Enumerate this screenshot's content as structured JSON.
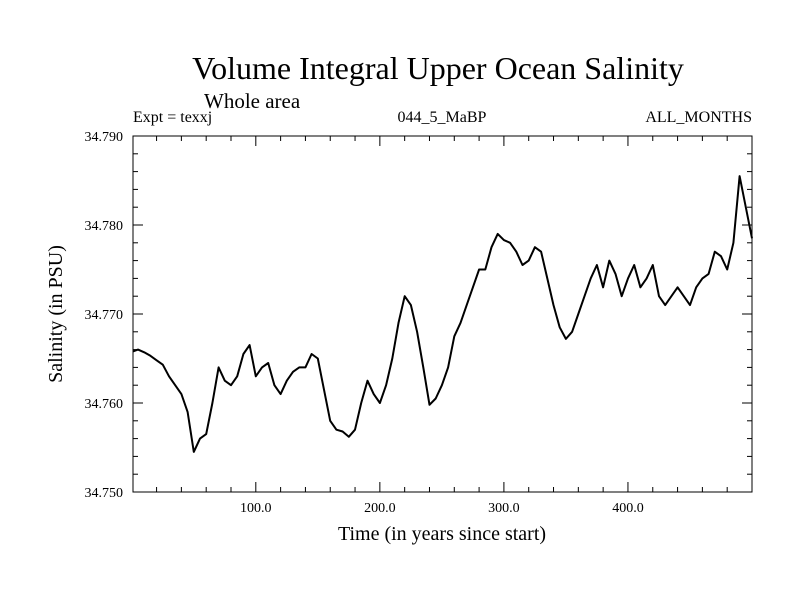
{
  "chart_data": {
    "type": "line",
    "title": "Volume Integral Upper Ocean Salinity",
    "subtitle": "Whole area",
    "experiment_label": "Expt = texxj",
    "run_label": "044_5_MaBP",
    "period_label": "ALL_MONTHS",
    "xlabel": "Time (in years since start)",
    "ylabel": "Salinity (in PSU)",
    "xlim": [
      1,
      500
    ],
    "ylim": [
      34.75,
      34.79
    ],
    "x_ticks": [
      100,
      200,
      300,
      400
    ],
    "x_tick_labels": [
      "100.0",
      "200.0",
      "300.0",
      "400.0"
    ],
    "y_ticks": [
      34.75,
      34.76,
      34.77,
      34.78,
      34.79
    ],
    "y_tick_labels": [
      "34.750",
      "34.760",
      "34.770",
      "34.780",
      "34.790"
    ],
    "grid": false,
    "series": [
      {
        "name": "Salinity",
        "x": [
          1,
          5,
          10,
          15,
          20,
          25,
          30,
          35,
          40,
          45,
          50,
          55,
          60,
          65,
          70,
          75,
          80,
          85,
          90,
          95,
          100,
          105,
          110,
          115,
          120,
          125,
          130,
          135,
          140,
          145,
          150,
          155,
          160,
          165,
          170,
          175,
          180,
          185,
          190,
          195,
          200,
          205,
          210,
          215,
          220,
          225,
          230,
          235,
          240,
          245,
          250,
          255,
          260,
          265,
          270,
          275,
          280,
          285,
          290,
          295,
          300,
          305,
          310,
          315,
          320,
          325,
          330,
          335,
          340,
          345,
          350,
          355,
          360,
          365,
          370,
          375,
          380,
          385,
          390,
          395,
          400,
          405,
          410,
          415,
          420,
          425,
          430,
          435,
          440,
          445,
          450,
          455,
          460,
          465,
          470,
          475,
          480,
          485,
          490,
          495,
          500
        ],
        "values": [
          34.7658,
          34.766,
          34.7657,
          34.7653,
          34.7648,
          34.7643,
          34.763,
          34.762,
          34.761,
          34.759,
          34.7545,
          34.756,
          34.7565,
          34.76,
          34.764,
          34.7625,
          34.762,
          34.763,
          34.7655,
          34.7665,
          34.763,
          34.764,
          34.7645,
          34.762,
          34.761,
          34.7625,
          34.7635,
          34.764,
          34.764,
          34.7655,
          34.765,
          34.7615,
          34.758,
          34.757,
          34.7568,
          34.7562,
          34.757,
          34.76,
          34.7625,
          34.761,
          34.76,
          34.762,
          34.765,
          34.769,
          34.772,
          34.771,
          34.768,
          34.764,
          34.7598,
          34.7605,
          34.762,
          34.764,
          34.7675,
          34.769,
          34.771,
          34.773,
          34.775,
          34.775,
          34.7775,
          34.779,
          34.7783,
          34.778,
          34.777,
          34.7755,
          34.776,
          34.7775,
          34.777,
          34.774,
          34.771,
          34.7685,
          34.7672,
          34.768,
          34.77,
          34.772,
          34.774,
          34.7755,
          34.773,
          34.776,
          34.7745,
          34.772,
          34.774,
          34.7755,
          34.773,
          34.774,
          34.7755,
          34.772,
          34.771,
          34.772,
          34.773,
          34.772,
          34.771,
          34.773,
          34.774,
          34.7745,
          34.777,
          34.7765,
          34.775,
          34.778,
          34.7855,
          34.782,
          34.7785
        ]
      }
    ]
  }
}
